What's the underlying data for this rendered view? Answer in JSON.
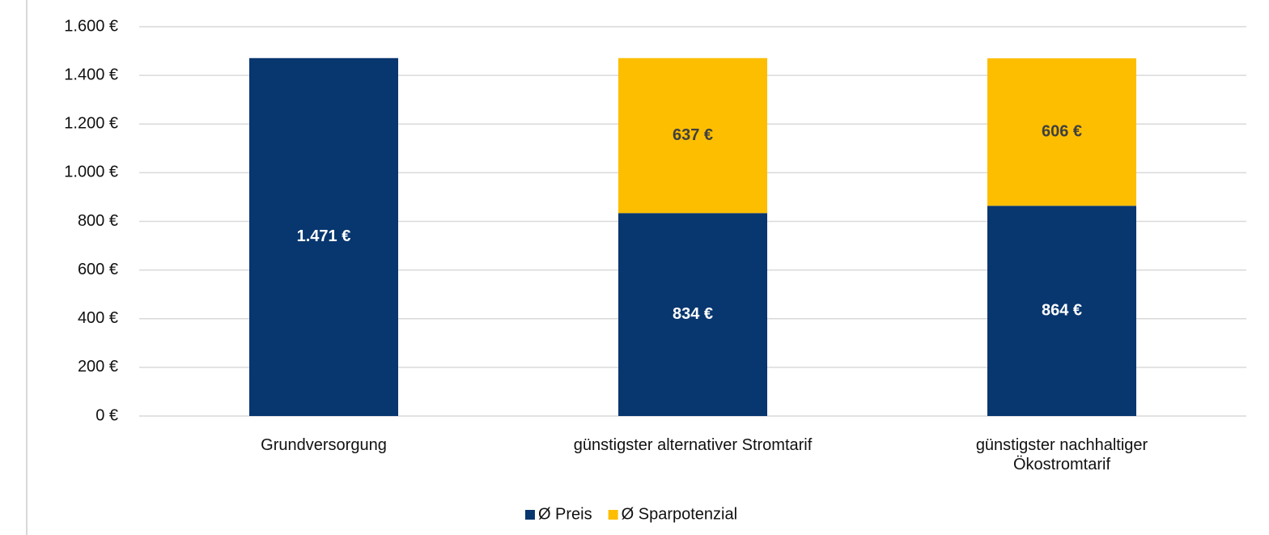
{
  "chart_data": {
    "type": "stacked_bar",
    "categories": [
      "Grundversorgung",
      "günstigster alternativer Stromtarif",
      "günstigster nachhaltiger Ökostromtarif"
    ],
    "series": [
      {
        "name": "Ø Preis",
        "color": "#08366f",
        "values": [
          1471,
          834,
          864
        ],
        "value_labels": [
          "1.471 €",
          "834 €",
          "864 €"
        ]
      },
      {
        "name": "Ø Sparpotenzial",
        "color": "#fdbe00",
        "values": [
          null,
          637,
          606
        ],
        "value_labels": [
          null,
          "637 €",
          "606 €"
        ]
      }
    ],
    "ylim": [
      0,
      1600
    ],
    "yticks": [
      {
        "value": 0,
        "label": "0 €"
      },
      {
        "value": 200,
        "label": "200 €"
      },
      {
        "value": 400,
        "label": "400 €"
      },
      {
        "value": 600,
        "label": "600 €"
      },
      {
        "value": 800,
        "label": "800 €"
      },
      {
        "value": 1000,
        "label": "1.000 €"
      },
      {
        "value": 1200,
        "label": "1.200 €"
      },
      {
        "value": 1400,
        "label": "1.400 €"
      },
      {
        "value": 1600,
        "label": "1.600 €"
      }
    ],
    "grid": true,
    "legend": "bottom"
  }
}
